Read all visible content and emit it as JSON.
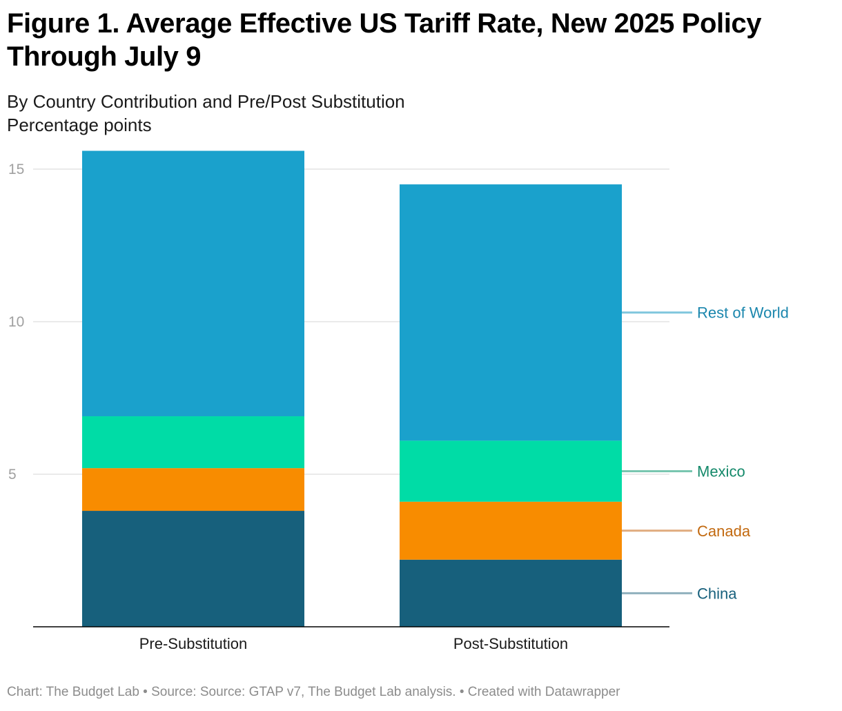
{
  "chart_data": {
    "type": "bar",
    "stacked": true,
    "title": "Figure 1. Average Effective US Tariff Rate, New 2025 Policy Through July 9",
    "subtitle": "By Country Contribution and Pre/Post Substitution",
    "unit_label": "Percentage points",
    "categories": [
      "Pre-Substitution",
      "Post-Substitution"
    ],
    "series": [
      {
        "name": "China",
        "values": [
          3.8,
          2.2
        ],
        "color": "#17607c",
        "label_color": "#17607c",
        "leader_color": "#8fb0bd"
      },
      {
        "name": "Canada",
        "values": [
          1.4,
          1.9
        ],
        "color": "#f88c00",
        "label_color": "#c2690f",
        "leader_color": "#e0ab7e"
      },
      {
        "name": "Mexico",
        "values": [
          1.7,
          2.0
        ],
        "color": "#00dca6",
        "label_color": "#14896a",
        "leader_color": "#76c4ae"
      },
      {
        "name": "Rest of World",
        "values": [
          8.7,
          8.4
        ],
        "color": "#1aa1cc",
        "label_color": "#1a86ad",
        "leader_color": "#7fc6dd"
      }
    ],
    "y_ticks": [
      5,
      10,
      15
    ],
    "ylim": [
      0,
      15.6
    ],
    "grid": true,
    "legend": "direct labels right"
  },
  "footer": "Chart: The Budget Lab • Source: Source: GTAP v7, The Budget Lab analysis. • Created with Datawrapper"
}
